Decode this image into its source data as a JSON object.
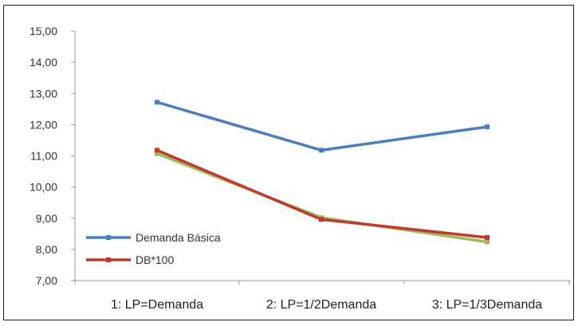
{
  "chart_data": {
    "type": "line",
    "categories": [
      "1:   LP=Demanda",
      "2: LP=1/2Demanda",
      "3: LP=1/3Demanda"
    ],
    "ylim": [
      7,
      15
    ],
    "yticks": [
      "7,00",
      "8,00",
      "9,00",
      "10,00",
      "11,00",
      "12,00",
      "13,00",
      "14,00",
      "15,00"
    ],
    "grid": false,
    "legend_position": "bottom-left",
    "series": [
      {
        "name": "Demanda Básica",
        "color": "#4a7ebf",
        "values": [
          12.72,
          11.18,
          11.93
        ]
      },
      {
        "name": "DB*100",
        "color": "#c0392b",
        "values": [
          11.18,
          8.96,
          8.38
        ]
      },
      {
        "color": "#9bbb59",
        "values": [
          11.07,
          9.02,
          8.24
        ]
      }
    ]
  }
}
